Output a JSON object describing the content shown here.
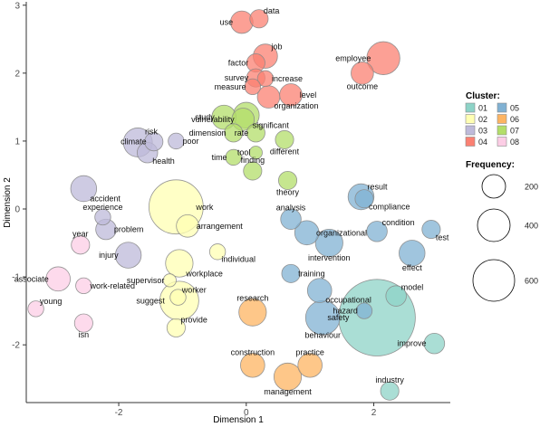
{
  "chart_data": {
    "type": "scatter",
    "title": "",
    "xlabel": "Dimension 1",
    "ylabel": "Dimension 2",
    "xlim": [
      -3.45,
      3.2
    ],
    "ylim": [
      -2.85,
      3.05
    ],
    "xticks": [
      -2,
      0,
      2
    ],
    "yticks": [
      -2,
      -1,
      0,
      1,
      2,
      3
    ],
    "grid": false,
    "legend_cluster_title": "Cluster:",
    "legend_size_title": "Frequency:",
    "legend_position": "right",
    "clusters": [
      {
        "id": "01",
        "color": "#8dd3c7"
      },
      {
        "id": "02",
        "color": "#ffffb3"
      },
      {
        "id": "03",
        "color": "#bebada"
      },
      {
        "id": "04",
        "color": "#fb8072"
      },
      {
        "id": "05",
        "color": "#80b1d3"
      },
      {
        "id": "06",
        "color": "#fdb462"
      },
      {
        "id": "07",
        "color": "#b3de69"
      },
      {
        "id": "08",
        "color": "#fccde5"
      }
    ],
    "size_legend": [
      200,
      400,
      600
    ],
    "points": [
      {
        "word": "data",
        "x": 0.2,
        "y": 2.8,
        "size": 40,
        "cluster": "04",
        "label_pos": "top-right"
      },
      {
        "word": "use",
        "x": -0.07,
        "y": 2.75,
        "size": 60,
        "cluster": "04",
        "label_pos": "left"
      },
      {
        "word": "job",
        "x": 0.3,
        "y": 2.25,
        "size": 70,
        "cluster": "04",
        "label_pos": "top-right"
      },
      {
        "word": "factor",
        "x": 0.15,
        "y": 2.15,
        "size": 40,
        "cluster": "04",
        "label_pos": "left"
      },
      {
        "word": "employee",
        "x": 2.15,
        "y": 2.22,
        "size": 130,
        "cluster": "04",
        "label_pos": "left"
      },
      {
        "word": "survey",
        "x": 0.15,
        "y": 1.93,
        "size": 40,
        "cluster": "04",
        "label_pos": "left"
      },
      {
        "word": "increase",
        "x": 0.3,
        "y": 1.92,
        "size": 30,
        "cluster": "04",
        "label_pos": "right"
      },
      {
        "word": "outcome",
        "x": 1.82,
        "y": 2.0,
        "size": 60,
        "cluster": "04",
        "label_pos": "bottom"
      },
      {
        "word": "measure",
        "x": 0.1,
        "y": 1.8,
        "size": 30,
        "cluster": "04",
        "label_pos": "left"
      },
      {
        "word": "level",
        "x": 0.7,
        "y": 1.68,
        "size": 60,
        "cluster": "04",
        "label_pos": "right"
      },
      {
        "word": "organization",
        "x": 0.35,
        "y": 1.65,
        "size": 60,
        "cluster": "04",
        "label_pos": "bottom-right"
      },
      {
        "word": "study",
        "x": -0.35,
        "y": 1.35,
        "size": 70,
        "cluster": "07",
        "label_pos": "left"
      },
      {
        "word": "vulnerability",
        "x": -0.05,
        "y": 1.32,
        "size": 60,
        "cluster": "07",
        "label_pos": "left"
      },
      {
        "word": "significant",
        "x": 0.0,
        "y": 1.38,
        "size": 80,
        "cluster": "07",
        "label_pos": "bottom-right"
      },
      {
        "word": "dimension",
        "x": -0.2,
        "y": 1.12,
        "size": 40,
        "cluster": "07",
        "label_pos": "left"
      },
      {
        "word": "rate",
        "x": 0.15,
        "y": 1.12,
        "size": 40,
        "cluster": "07",
        "label_pos": "left"
      },
      {
        "word": "different",
        "x": 0.6,
        "y": 1.02,
        "size": 40,
        "cluster": "07",
        "label_pos": "bottom"
      },
      {
        "word": "tool",
        "x": 0.15,
        "y": 0.83,
        "size": 20,
        "cluster": "07",
        "label_pos": "left"
      },
      {
        "word": "time",
        "x": -0.2,
        "y": 0.76,
        "size": 30,
        "cluster": "07",
        "label_pos": "left"
      },
      {
        "word": "finding",
        "x": 0.1,
        "y": 0.56,
        "size": 40,
        "cluster": "07",
        "label_pos": "top"
      },
      {
        "word": "theory",
        "x": 0.65,
        "y": 0.42,
        "size": 40,
        "cluster": "07",
        "label_pos": "bottom"
      },
      {
        "word": "risk",
        "x": -1.7,
        "y": 0.98,
        "size": 100,
        "cluster": "03",
        "label_pos": "top-right"
      },
      {
        "word": "climate",
        "x": -1.45,
        "y": 0.99,
        "size": 40,
        "cluster": "03",
        "label_pos": "left"
      },
      {
        "word": "poor",
        "x": -1.1,
        "y": 1.0,
        "size": 30,
        "cluster": "03",
        "label_pos": "right"
      },
      {
        "word": "health",
        "x": -1.55,
        "y": 0.83,
        "size": 50,
        "cluster": "03",
        "label_pos": "bottom-right"
      },
      {
        "word": "accident",
        "x": -2.55,
        "y": 0.3,
        "size": 80,
        "cluster": "03",
        "label_pos": "bottom-right"
      },
      {
        "word": "experience",
        "x": -2.25,
        "y": -0.12,
        "size": 30,
        "cluster": "03",
        "label_pos": "top"
      },
      {
        "word": "problem",
        "x": -2.2,
        "y": -0.3,
        "size": 50,
        "cluster": "03",
        "label_pos": "right"
      },
      {
        "word": "injury",
        "x": -1.85,
        "y": -0.68,
        "size": 80,
        "cluster": "03",
        "label_pos": "left"
      },
      {
        "word": "work",
        "x": -1.1,
        "y": 0.03,
        "size": 350,
        "cluster": "02",
        "label_pos": "right"
      },
      {
        "word": "arrangement",
        "x": -0.92,
        "y": -0.25,
        "size": 60,
        "cluster": "02",
        "label_pos": "right"
      },
      {
        "word": "individual",
        "x": -0.45,
        "y": -0.63,
        "size": 30,
        "cluster": "02",
        "label_pos": "bottom-right"
      },
      {
        "word": "workplace",
        "x": -1.05,
        "y": -0.8,
        "size": 90,
        "cluster": "02",
        "label_pos": "bottom-right"
      },
      {
        "word": "supervisor",
        "x": -1.2,
        "y": -1.05,
        "size": 20,
        "cluster": "02",
        "label_pos": "left"
      },
      {
        "word": "suggest",
        "x": -1.05,
        "y": -1.35,
        "size": 180,
        "cluster": "02",
        "label_pos": "left"
      },
      {
        "word": "worker",
        "x": -1.07,
        "y": -1.3,
        "size": 30,
        "cluster": "02",
        "label_pos": "top-right"
      },
      {
        "word": "provide",
        "x": -1.1,
        "y": -1.75,
        "size": 40,
        "cluster": "02",
        "label_pos": "top-right"
      },
      {
        "word": "analysis",
        "x": 0.7,
        "y": -0.15,
        "size": 50,
        "cluster": "05",
        "label_pos": "top"
      },
      {
        "word": "organizational",
        "x": 0.95,
        "y": -0.35,
        "size": 70,
        "cluster": "05",
        "label_pos": "right"
      },
      {
        "word": "intervention",
        "x": 1.3,
        "y": -0.5,
        "size": 90,
        "cluster": "05",
        "label_pos": "bottom"
      },
      {
        "word": "result",
        "x": 1.8,
        "y": 0.18,
        "size": 80,
        "cluster": "05",
        "label_pos": "top-right"
      },
      {
        "word": "compliance",
        "x": 1.85,
        "y": 0.15,
        "size": 40,
        "cluster": "05",
        "label_pos": "bottom-right"
      },
      {
        "word": "condition",
        "x": 2.05,
        "y": -0.33,
        "size": 50,
        "cluster": "05",
        "label_pos": "top-right"
      },
      {
        "word": "test",
        "x": 2.9,
        "y": -0.3,
        "size": 40,
        "cluster": "05",
        "label_pos": "bottom-right"
      },
      {
        "word": "effect",
        "x": 2.6,
        "y": -0.65,
        "size": 80,
        "cluster": "05",
        "label_pos": "bottom"
      },
      {
        "word": "training",
        "x": 0.7,
        "y": -0.95,
        "size": 40,
        "cluster": "05",
        "label_pos": "right"
      },
      {
        "word": "occupational",
        "x": 1.15,
        "y": -1.2,
        "size": 70,
        "cluster": "05",
        "label_pos": "bottom-right"
      },
      {
        "word": "hazard",
        "x": 1.85,
        "y": -1.5,
        "size": 30,
        "cluster": "05",
        "label_pos": "left"
      },
      {
        "word": "behaviour",
        "x": 1.2,
        "y": -1.6,
        "size": 140,
        "cluster": "05",
        "label_pos": "bottom"
      },
      {
        "word": "research",
        "x": 0.1,
        "y": -1.52,
        "size": 90,
        "cluster": "06",
        "label_pos": "top"
      },
      {
        "word": "construction",
        "x": 0.1,
        "y": -2.3,
        "size": 70,
        "cluster": "06",
        "label_pos": "top"
      },
      {
        "word": "practice",
        "x": 1.0,
        "y": -2.3,
        "size": 70,
        "cluster": "06",
        "label_pos": "top"
      },
      {
        "word": "management",
        "x": 0.65,
        "y": -2.47,
        "size": 90,
        "cluster": "06",
        "label_pos": "bottom"
      },
      {
        "word": "safety",
        "x": 2.05,
        "y": -1.6,
        "size": 700,
        "cluster": "01",
        "label_pos": "left"
      },
      {
        "word": "model",
        "x": 2.35,
        "y": -1.28,
        "size": 50,
        "cluster": "01",
        "label_pos": "top-right"
      },
      {
        "word": "improve",
        "x": 2.95,
        "y": -1.98,
        "size": 50,
        "cluster": "01",
        "label_pos": "left"
      },
      {
        "word": "industry",
        "x": 2.25,
        "y": -2.68,
        "size": 40,
        "cluster": "01",
        "label_pos": "top"
      },
      {
        "word": "year",
        "x": -2.6,
        "y": -0.53,
        "size": 40,
        "cluster": "08",
        "label_pos": "top"
      },
      {
        "word": "associate",
        "x": -2.95,
        "y": -1.03,
        "size": 70,
        "cluster": "08",
        "label_pos": "left"
      },
      {
        "word": "work-related",
        "x": -2.55,
        "y": -1.13,
        "size": 30,
        "cluster": "08",
        "label_pos": "right"
      },
      {
        "word": "young",
        "x": -3.3,
        "y": -1.47,
        "size": 30,
        "cluster": "08",
        "label_pos": "top-right"
      },
      {
        "word": "isn",
        "x": -2.55,
        "y": -1.68,
        "size": 40,
        "cluster": "08",
        "label_pos": "bottom"
      }
    ]
  }
}
